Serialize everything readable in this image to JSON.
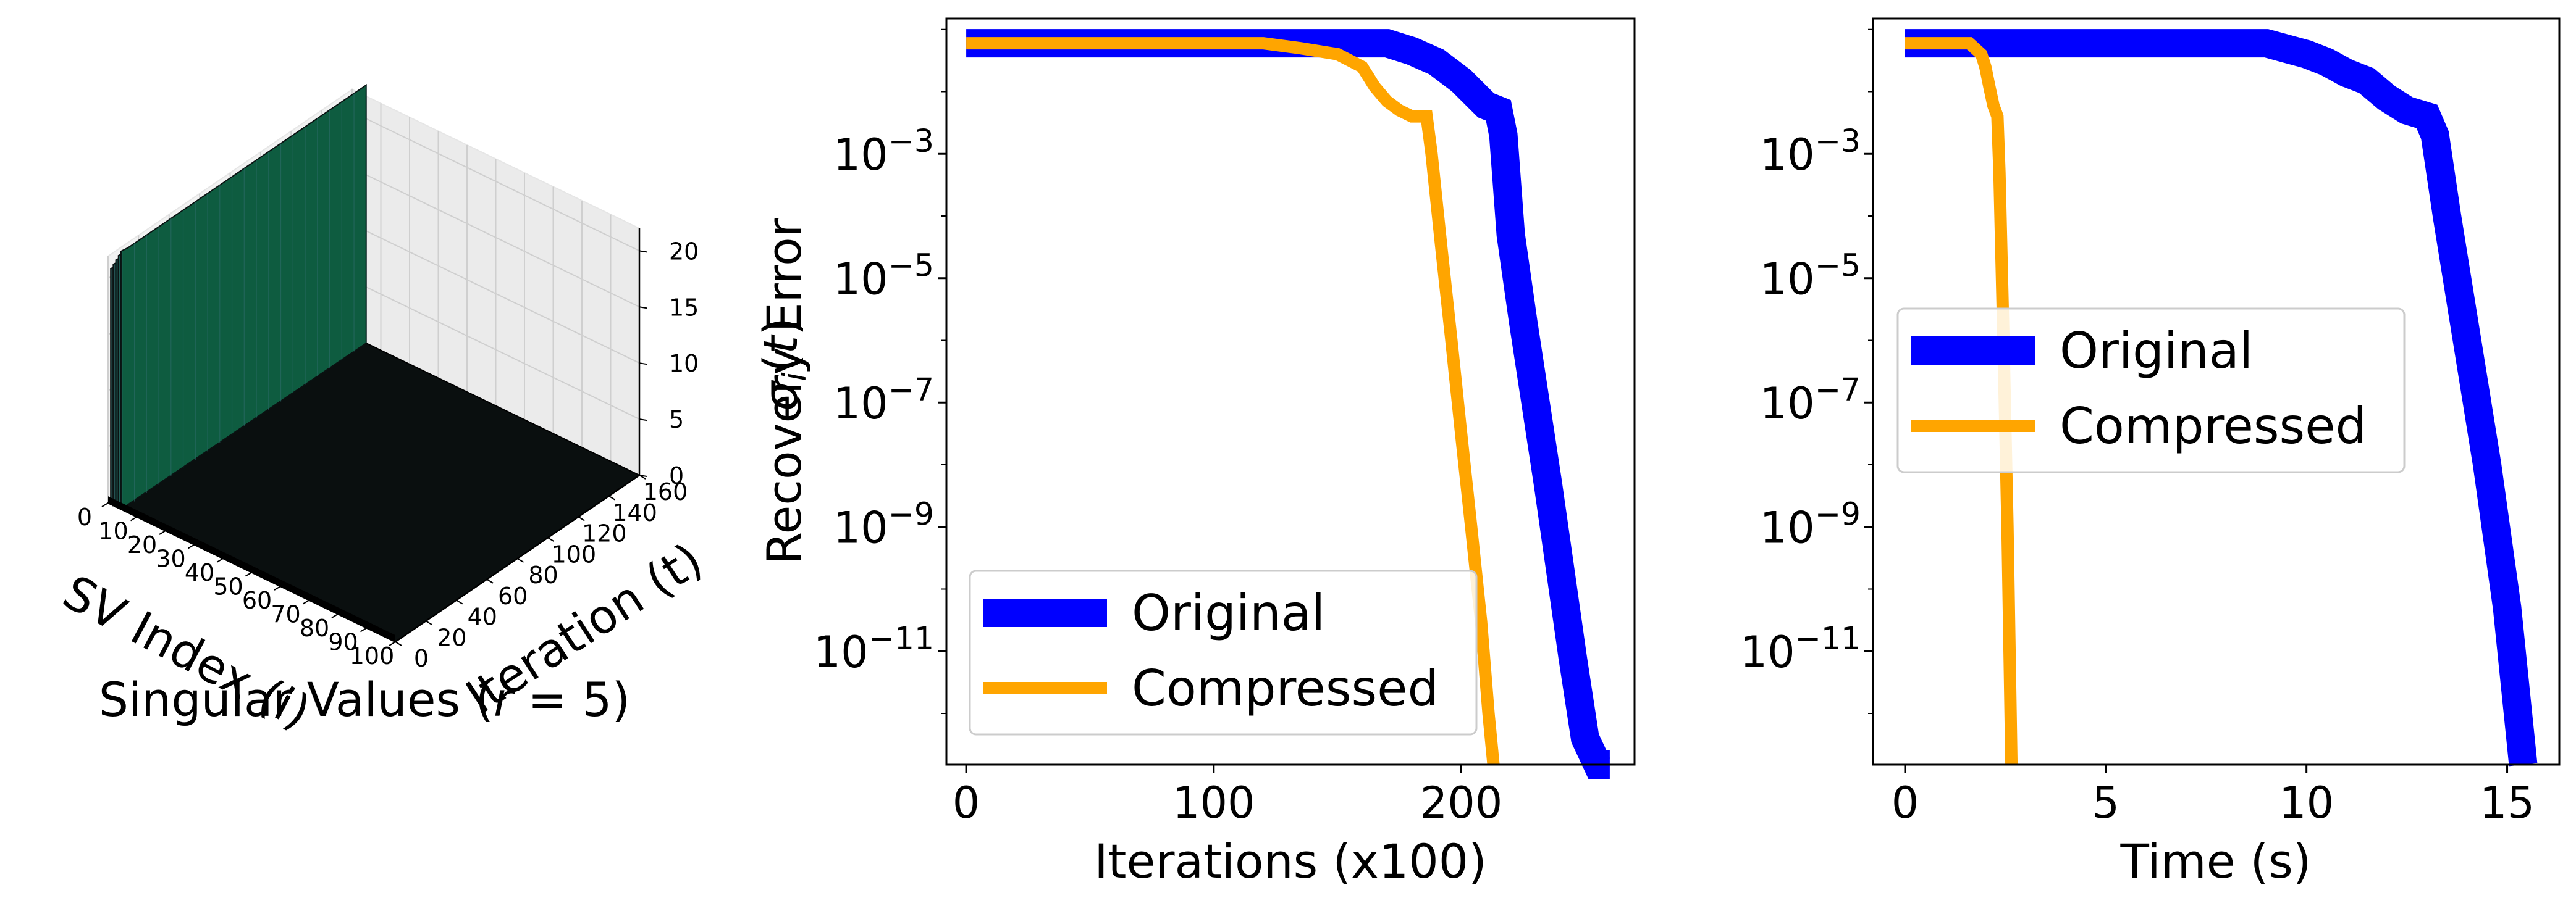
{
  "chart_data": [
    {
      "type": "surface3d",
      "title": "Singular Values (r = 5)",
      "title_html": "Singular Values (<tspan font-style='italic'>r</tspan> = 5)",
      "xlabel": "SV Index (i)",
      "ylabel": "Iteration (t)",
      "zlabel": "σi(t)",
      "x_ticks": [
        "0",
        "10",
        "20",
        "30",
        "40",
        "50",
        "60",
        "70",
        "80",
        "90",
        "100"
      ],
      "y_ticks": [
        "0",
        "20",
        "40",
        "60",
        "80",
        "100",
        "120",
        "140",
        "160"
      ],
      "z_ticks": [
        "0",
        "5",
        "10",
        "15",
        "20"
      ],
      "xlim": [
        0,
        100
      ],
      "ylim": [
        0,
        160
      ],
      "zlim": [
        0,
        22
      ],
      "surface": {
        "nonzero_indices": [
          1,
          2,
          3,
          4,
          5
        ],
        "values_at_start": [
          21,
          21.5,
          22,
          22.5,
          23
        ],
        "nonzero_rest": 0
      },
      "grid": true
    },
    {
      "type": "line",
      "xlabel": "Iterations (x100)",
      "ylabel": "Recovery Error",
      "yscale": "log",
      "x_ticks": [
        "0",
        "100",
        "200"
      ],
      "y_ticks": [
        "10^-3",
        "10^-5",
        "10^-7",
        "10^-9",
        "10^-11"
      ],
      "xlim": [
        -8,
        270
      ],
      "ylim": [
        1.5e-13,
        0.15
      ],
      "legend_position": "lower-left",
      "series": [
        {
          "name": "Original",
          "color": "#0000ff",
          "x": [
            0,
            30,
            60,
            90,
            120,
            150,
            170,
            180,
            190,
            200,
            210,
            215,
            217,
            220,
            225,
            230,
            235,
            240,
            245,
            250,
            255,
            260
          ],
          "y": [
            0.06,
            0.06,
            0.06,
            0.06,
            0.06,
            0.06,
            0.06,
            0.045,
            0.03,
            0.015,
            0.006,
            0.005,
            0.002,
            5e-05,
            2e-06,
            1e-07,
            5e-09,
            2e-10,
            8e-12,
            4e-13,
            1.5e-13,
            1.5e-13
          ]
        },
        {
          "name": "Compressed",
          "color": "#ffa500",
          "x": [
            0,
            30,
            60,
            90,
            120,
            135,
            150,
            160,
            165,
            170,
            175,
            180,
            186,
            188,
            192,
            196,
            200,
            204,
            208,
            211,
            213
          ],
          "y": [
            0.06,
            0.06,
            0.06,
            0.06,
            0.06,
            0.05,
            0.04,
            0.025,
            0.012,
            0.007,
            0.005,
            0.004,
            0.004,
            0.001,
            3e-05,
            1e-06,
            3e-08,
            1e-09,
            3e-11,
            1e-12,
            1.5e-13
          ]
        }
      ]
    },
    {
      "type": "line",
      "xlabel": "Time (s)",
      "ylabel": "",
      "yscale": "log",
      "x_ticks": [
        "0",
        "5",
        "10",
        "15"
      ],
      "y_ticks": [
        "10^-3",
        "10^-5",
        "10^-7",
        "10^-9",
        "10^-11"
      ],
      "xlim": [
        -0.8,
        16.3
      ],
      "ylim": [
        1.5e-13,
        0.15
      ],
      "legend_position": "center-left",
      "series": [
        {
          "name": "Original",
          "color": "#0000ff",
          "x": [
            0,
            3,
            6,
            9,
            10,
            10.5,
            11,
            11.5,
            12,
            12.5,
            13,
            13.2,
            13.5,
            14,
            14.5,
            15,
            15.4
          ],
          "y": [
            0.06,
            0.06,
            0.06,
            0.06,
            0.04,
            0.03,
            0.02,
            0.015,
            0.008,
            0.005,
            0.004,
            0.002,
            0.0001,
            1e-06,
            1e-08,
            5e-11,
            1.5e-13
          ]
        },
        {
          "name": "Compressed",
          "color": "#ffa500",
          "x": [
            0,
            1,
            1.6,
            1.9,
            2.0,
            2.1,
            2.2,
            2.3,
            2.35,
            2.45,
            2.55,
            2.65
          ],
          "y": [
            0.06,
            0.06,
            0.06,
            0.04,
            0.025,
            0.012,
            0.006,
            0.004,
            0.0005,
            1e-06,
            1e-09,
            1.5e-13
          ]
        }
      ]
    }
  ]
}
